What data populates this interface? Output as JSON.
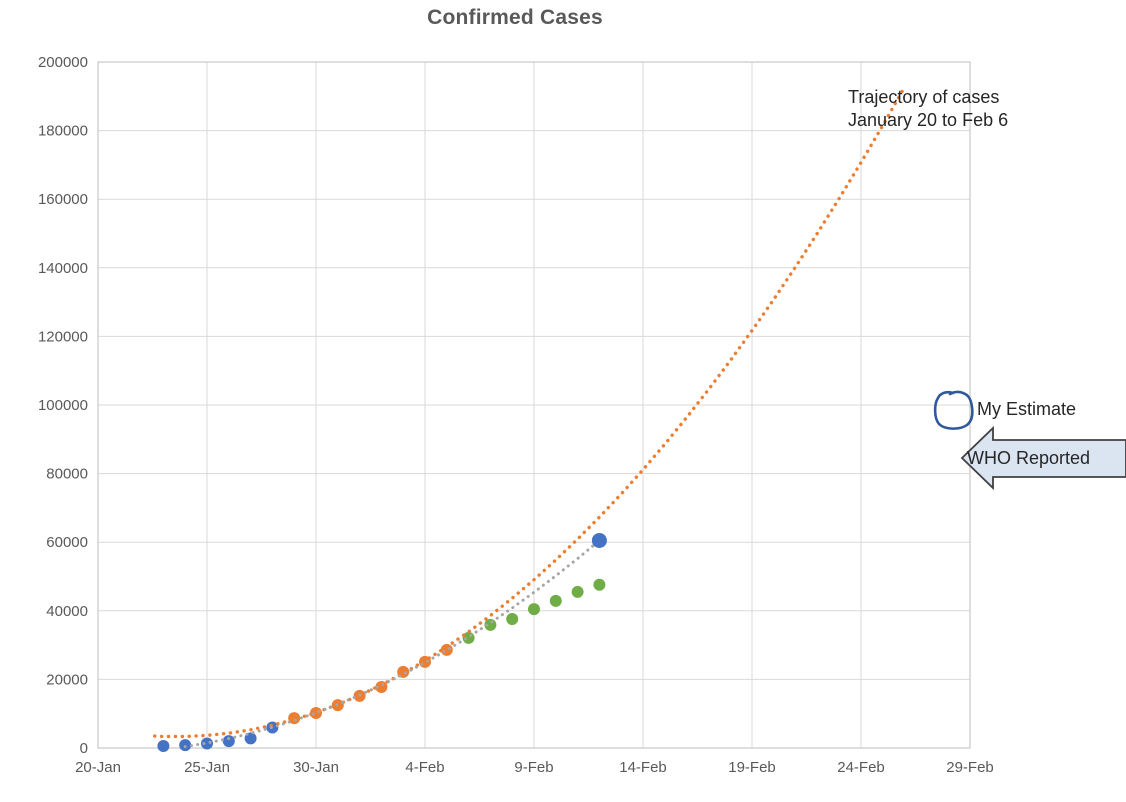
{
  "chart": {
    "title": "Confirmed Cases"
  },
  "annotations": {
    "trajectory_line1": "Trajectory of cases",
    "trajectory_line2": "January 20 to Feb 6",
    "my_estimate": "My Estimate",
    "who_reported": "WHO Reported"
  },
  "colors": {
    "blue": "#4472C4",
    "orange": "#ED7D31",
    "green": "#70AD47",
    "gray_trend": "#A6A6A6",
    "gridline": "#D9D9D9",
    "plot_border": "#C9C9C9",
    "axis_text": "#595959",
    "annotation_text": "#262626",
    "arrow_fill": "#DBE5F1",
    "arrow_stroke": "#404040",
    "scribble_stroke": "#30599B"
  },
  "chart_data": {
    "type": "scatter",
    "title": "Confirmed Cases",
    "xlabel": "",
    "ylabel": "",
    "grid": true,
    "x_unit": "days since 20-Jan",
    "x_tick_days": [
      0,
      5,
      10,
      15,
      20,
      25,
      30,
      35,
      40
    ],
    "x_tick_labels": [
      "20-Jan",
      "25-Jan",
      "30-Jan",
      "4-Feb",
      "9-Feb",
      "14-Feb",
      "19-Feb",
      "24-Feb",
      "29-Feb"
    ],
    "y_tick_values": [
      0,
      20000,
      40000,
      60000,
      80000,
      100000,
      120000,
      140000,
      160000,
      180000,
      200000
    ],
    "y_tick_labels": [
      "0",
      "20000",
      "40000",
      "60000",
      "80000",
      "100000",
      "120000",
      "140000",
      "160000",
      "180000",
      "200000"
    ],
    "ylim": [
      0,
      200000
    ],
    "xlim_days": [
      0,
      40
    ],
    "series": [
      {
        "name": "reported-early-blue",
        "color": "#4472C4",
        "marker_radius": 6,
        "days": [
          3,
          4,
          5,
          6,
          7,
          8
        ],
        "dates": [
          "23-Jan",
          "24-Jan",
          "25-Jan",
          "26-Jan",
          "27-Jan",
          "28-Jan"
        ],
        "values": [
          580,
          850,
          1320,
          2000,
          2800,
          5970
        ]
      },
      {
        "name": "observed-orange",
        "color": "#ED7D31",
        "marker_radius": 6,
        "days": [
          9,
          10,
          11,
          12,
          13,
          14,
          15,
          16
        ],
        "dates": [
          "29-Jan",
          "30-Jan",
          "31-Jan",
          "1-Feb",
          "2-Feb",
          "3-Feb",
          "4-Feb",
          "5-Feb"
        ],
        "values": [
          8700,
          10200,
          12500,
          15200,
          17800,
          22200,
          25100,
          28600
        ]
      },
      {
        "name": "who-reported-green",
        "color": "#70AD47",
        "marker_radius": 6,
        "days": [
          17,
          18,
          19,
          20,
          21,
          22,
          23
        ],
        "dates": [
          "6-Feb",
          "7-Feb",
          "8-Feb",
          "9-Feb",
          "10-Feb",
          "11-Feb",
          "12-Feb"
        ],
        "values": [
          32100,
          35900,
          37600,
          40500,
          42900,
          45500,
          47600
        ]
      },
      {
        "name": "estimate-blue-large",
        "color": "#4472C4",
        "marker_radius": 7.5,
        "days": [
          23
        ],
        "dates": [
          "12-Feb"
        ],
        "values": [
          60500
        ]
      }
    ],
    "trendlines": [
      {
        "name": "trajectory-orange-dotted",
        "color": "#ED7D31",
        "style": "dotted",
        "dot_size": 3.4,
        "dot_gap": 6.8,
        "days": [
          2.6,
          3,
          4,
          5,
          6,
          7,
          8,
          9,
          10,
          11,
          12,
          13,
          14,
          15,
          16,
          17,
          18,
          19,
          20,
          21,
          22,
          23,
          24,
          25,
          26,
          27,
          28,
          29,
          30,
          31,
          32,
          33,
          34,
          35,
          36,
          37
        ],
        "values": [
          3470,
          3360,
          3340,
          3660,
          4310,
          5310,
          6640,
          8310,
          10330,
          12680,
          15360,
          18390,
          21760,
          25460,
          29510,
          33890,
          38610,
          43670,
          49070,
          54810,
          60890,
          67300,
          74050,
          81150,
          88580,
          96350,
          104460,
          112910,
          121700,
          130820,
          140290,
          150090,
          160230,
          170710,
          181530,
          192690
        ]
      },
      {
        "name": "estimate-gray-dotted",
        "color": "#A6A6A6",
        "style": "dotted",
        "dot_size": 3.0,
        "dot_gap": 6.2,
        "days": [
          4,
          5,
          6,
          7,
          8,
          9,
          10,
          11,
          12,
          13,
          14,
          15,
          16,
          17,
          18,
          19,
          20,
          21,
          22,
          23
        ],
        "values": [
          400,
          1460,
          2750,
          4270,
          6030,
          8030,
          10250,
          12710,
          15410,
          18340,
          21500,
          24900,
          28530,
          32390,
          36490,
          40830,
          45390,
          50190,
          55230,
          60500
        ]
      }
    ]
  }
}
